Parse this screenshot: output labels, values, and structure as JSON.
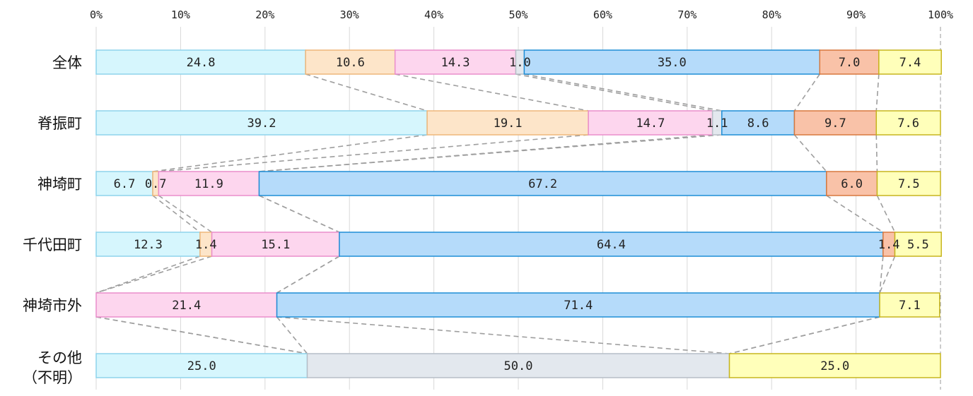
{
  "chart_data": {
    "type": "bar",
    "orientation": "horizontal",
    "stacked": "percent",
    "xlim": [
      0,
      100
    ],
    "x_ticks": [
      "0%",
      "10%",
      "20%",
      "30%",
      "40%",
      "50%",
      "60%",
      "70%",
      "80%",
      "90%",
      "100%"
    ],
    "grid": true,
    "legend": "none",
    "series_colors": {
      "fill": [
        "#d6f6fd",
        "#fde5c9",
        "#fdd6ee",
        "#e3e8ee",
        "#b5dbfa",
        "#f9c2a8",
        "#ffffba"
      ],
      "stroke": [
        "#8ed4ec",
        "#efb77a",
        "#ea8ecb",
        "#b6bec7",
        "#1f8ed6",
        "#d8783e",
        "#c7b51e"
      ]
    },
    "connector_color": "#9e9e9e",
    "rows": [
      {
        "label": [
          "全体"
        ],
        "values": [
          24.8,
          10.6,
          14.3,
          1.0,
          35.0,
          7.0,
          7.4
        ],
        "labels": [
          "24.8",
          "10.6",
          "14.3",
          "1.0",
          "35.0",
          "7.0",
          "7.4"
        ]
      },
      {
        "label": [
          "脊振町"
        ],
        "values": [
          39.2,
          19.1,
          14.7,
          1.1,
          8.6,
          9.7,
          7.6
        ],
        "labels": [
          "39.2",
          "19.1",
          "14.7",
          "1.1",
          "8.6",
          "9.7",
          "7.6"
        ]
      },
      {
        "label": [
          "神埼町"
        ],
        "values": [
          6.7,
          0.7,
          11.9,
          0.0,
          67.2,
          6.0,
          7.5
        ],
        "labels": [
          "6.7",
          "0.7",
          "11.9",
          "",
          "67.2",
          "6.0",
          "7.5"
        ]
      },
      {
        "label": [
          "千代田町"
        ],
        "values": [
          12.3,
          1.4,
          15.1,
          0.0,
          64.4,
          1.4,
          5.5
        ],
        "labels": [
          "12.3",
          "1.4",
          "15.1",
          "",
          "64.4",
          "1.4",
          "5.5"
        ]
      },
      {
        "label": [
          "神埼市外"
        ],
        "values": [
          0.0,
          0.0,
          21.4,
          0.0,
          71.4,
          0.0,
          7.1
        ],
        "labels": [
          "",
          "",
          "21.4",
          "",
          "71.4",
          "",
          "7.1"
        ]
      },
      {
        "label": [
          "その他",
          "（不明）"
        ],
        "values": [
          25.0,
          0.0,
          0.0,
          50.0,
          0.0,
          0.0,
          25.0
        ],
        "labels": [
          "25.0",
          "",
          "",
          "50.0",
          "",
          "",
          "25.0"
        ]
      }
    ]
  }
}
